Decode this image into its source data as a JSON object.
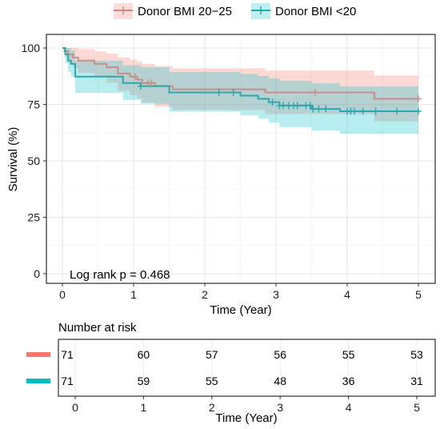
{
  "chart_data": [
    {
      "type": "line",
      "subtype": "kaplan-meier survival curve with confidence bands",
      "xlabel": "Time (Year)",
      "ylabel": "Survival (%)",
      "xlim": [
        0,
        5
      ],
      "ylim": [
        0,
        100
      ],
      "x_ticks": [
        "0",
        "1",
        "2",
        "3",
        "4",
        "5"
      ],
      "y_ticks": [
        "0",
        "25",
        "50",
        "75",
        "100"
      ],
      "grid": true,
      "legend_position": "top",
      "annotation": "Log rank p = 0.468",
      "series": [
        {
          "name": "Donor BMI 20−25",
          "color": "#F8766D",
          "line_color": "#C98D88",
          "steps": [
            [
              0,
              100
            ],
            [
              0.03,
              98.6
            ],
            [
              0.08,
              97.2
            ],
            [
              0.15,
              95.8
            ],
            [
              0.22,
              94.4
            ],
            [
              0.45,
              93.0
            ],
            [
              0.62,
              91.5
            ],
            [
              0.78,
              88.7
            ],
            [
              0.95,
              87.3
            ],
            [
              1.05,
              86.0
            ],
            [
              1.12,
              84.5
            ],
            [
              1.3,
              83.1
            ],
            [
              1.55,
              81.7
            ],
            [
              2.0,
              81.7
            ],
            [
              2.05,
              81.7
            ],
            [
              2.85,
              80.3
            ],
            [
              4.35,
              80.3
            ],
            [
              4.38,
              77.5
            ],
            [
              5.0,
              77.5
            ]
          ],
          "upper": [
            [
              0,
              100
            ],
            [
              0.03,
              100
            ],
            [
              0.08,
              100
            ],
            [
              0.15,
              100
            ],
            [
              0.22,
              99.5
            ],
            [
              0.45,
              98.5
            ],
            [
              0.62,
              97.5
            ],
            [
              0.78,
              95.8
            ],
            [
              0.95,
              94.8
            ],
            [
              1.05,
              94.0
            ],
            [
              1.12,
              93.0
            ],
            [
              1.3,
              92.0
            ],
            [
              1.55,
              91.0
            ],
            [
              2.85,
              90.0
            ],
            [
              4.35,
              90.0
            ],
            [
              4.38,
              87.8
            ],
            [
              5.0,
              87.8
            ]
          ],
          "lower": [
            [
              0,
              100
            ],
            [
              0.03,
              95.9
            ],
            [
              0.08,
              93.4
            ],
            [
              0.15,
              91.1
            ],
            [
              0.22,
              89.0
            ],
            [
              0.45,
              86.8
            ],
            [
              0.62,
              84.6
            ],
            [
              0.78,
              81.0
            ],
            [
              0.95,
              79.1
            ],
            [
              1.05,
              77.6
            ],
            [
              1.12,
              75.8
            ],
            [
              1.3,
              74.0
            ],
            [
              1.55,
              72.5
            ],
            [
              2.85,
              70.8
            ],
            [
              4.35,
              70.8
            ],
            [
              4.38,
              67.5
            ],
            [
              5.0,
              67.5
            ]
          ],
          "censor": [
            1.02,
            1.2,
            1.25,
            3.55,
            5.0
          ]
        },
        {
          "name": "Donor BMI <20",
          "color": "#00BFC4",
          "line_color": "#2BA7AD",
          "steps": [
            [
              0,
              100
            ],
            [
              0.04,
              97.2
            ],
            [
              0.08,
              94.4
            ],
            [
              0.12,
              93.0
            ],
            [
              0.18,
              87.3
            ],
            [
              0.75,
              87.3
            ],
            [
              0.85,
              84.5
            ],
            [
              1.1,
              83.1
            ],
            [
              1.45,
              83.1
            ],
            [
              1.5,
              80.3
            ],
            [
              2.4,
              80.3
            ],
            [
              2.5,
              78.9
            ],
            [
              2.75,
              77.5
            ],
            [
              2.9,
              76.0
            ],
            [
              3.05,
              74.5
            ],
            [
              3.3,
              74.5
            ],
            [
              3.35,
              74.5
            ],
            [
              3.5,
              73.0
            ],
            [
              3.9,
              72.0
            ],
            [
              5.0,
              72.0
            ]
          ],
          "upper": [
            [
              0,
              100
            ],
            [
              0.04,
              100
            ],
            [
              0.08,
              100
            ],
            [
              0.12,
              98.9
            ],
            [
              0.18,
              94.4
            ],
            [
              0.75,
              94.4
            ],
            [
              0.85,
              92.4
            ],
            [
              1.1,
              91.5
            ],
            [
              1.5,
              89.4
            ],
            [
              2.5,
              88.5
            ],
            [
              2.75,
              87.6
            ],
            [
              2.9,
              86.5
            ],
            [
              3.05,
              85.5
            ],
            [
              3.5,
              84.4
            ],
            [
              3.9,
              83.0
            ],
            [
              5.0,
              83.0
            ]
          ],
          "lower": [
            [
              0,
              100
            ],
            [
              0.04,
              93.4
            ],
            [
              0.08,
              89.4
            ],
            [
              0.12,
              87.4
            ],
            [
              0.18,
              80.1
            ],
            [
              0.75,
              80.1
            ],
            [
              0.85,
              77.0
            ],
            [
              1.1,
              75.3
            ],
            [
              1.5,
              71.8
            ],
            [
              2.5,
              70.2
            ],
            [
              2.75,
              68.7
            ],
            [
              2.9,
              66.9
            ],
            [
              3.05,
              65.0
            ],
            [
              3.5,
              63.4
            ],
            [
              3.9,
              62.0
            ],
            [
              5.0,
              62.0
            ]
          ],
          "censor": [
            1.1,
            2.2,
            2.4,
            2.95,
            3.05,
            3.1,
            3.18,
            3.25,
            3.3,
            3.42,
            3.48,
            3.52,
            3.6,
            3.7,
            4.0,
            4.05,
            4.1,
            4.22,
            4.4,
            4.7,
            5.0
          ]
        }
      ]
    },
    {
      "type": "table",
      "title": "Number at risk",
      "xlabel": "Time (Year)",
      "x_ticks": [
        "0",
        "1",
        "2",
        "3",
        "4",
        "5"
      ],
      "rows": [
        {
          "color": "#F8766D",
          "values": [
            "71",
            "60",
            "57",
            "56",
            "55",
            "53"
          ]
        },
        {
          "color": "#00BFC4",
          "values": [
            "71",
            "59",
            "55",
            "48",
            "36",
            "31"
          ]
        }
      ]
    }
  ]
}
